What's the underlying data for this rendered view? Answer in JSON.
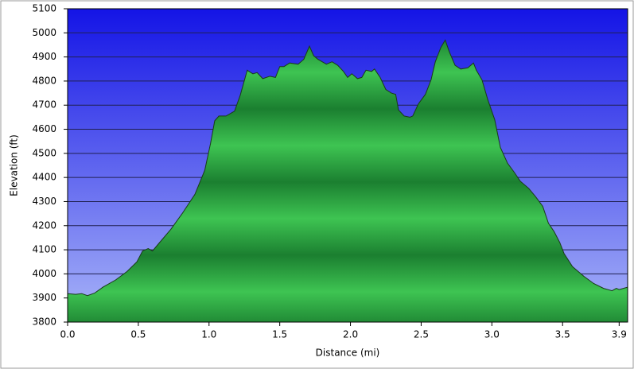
{
  "chart_data": {
    "type": "area",
    "xlabel": "Distance (mi)",
    "ylabel": "Elevation (ft)",
    "x": [
      0,
      0.056,
      0.1,
      0.14,
      0.19,
      0.25,
      0.34,
      0.42,
      0.49,
      0.53,
      0.57,
      0.6,
      0.65,
      0.73,
      0.81,
      0.9,
      0.97,
      1.01,
      1.04,
      1.07,
      1.12,
      1.18,
      1.22,
      1.27,
      1.31,
      1.34,
      1.38,
      1.43,
      1.47,
      1.5,
      1.53,
      1.57,
      1.63,
      1.67,
      1.71,
      1.74,
      1.77,
      1.83,
      1.87,
      1.91,
      1.95,
      1.98,
      2.01,
      2.05,
      2.08,
      2.11,
      2.15,
      2.17,
      2.21,
      2.25,
      2.29,
      2.32,
      2.34,
      2.38,
      2.42,
      2.44,
      2.48,
      2.53,
      2.57,
      2.6,
      2.64,
      2.67,
      2.7,
      2.74,
      2.78,
      2.83,
      2.87,
      2.89,
      2.93,
      2.97,
      3.02,
      3.06,
      3.11,
      3.16,
      3.2,
      3.26,
      3.31,
      3.36,
      3.4,
      3.44,
      3.48,
      3.51,
      3.57,
      3.65,
      3.72,
      3.79,
      3.85,
      3.88,
      3.9,
      3.96
    ],
    "values": [
      3918,
      3915,
      3918,
      3910,
      3920,
      3945,
      3975,
      4010,
      4050,
      4095,
      4105,
      4095,
      4130,
      4185,
      4250,
      4330,
      4430,
      4540,
      4635,
      4655,
      4655,
      4675,
      4740,
      4845,
      4830,
      4835,
      4810,
      4820,
      4815,
      4860,
      4860,
      4875,
      4870,
      4890,
      4945,
      4905,
      4890,
      4870,
      4880,
      4865,
      4840,
      4815,
      4830,
      4810,
      4815,
      4845,
      4840,
      4850,
      4815,
      4765,
      4750,
      4745,
      4680,
      4655,
      4650,
      4655,
      4705,
      4745,
      4805,
      4880,
      4940,
      4970,
      4920,
      4865,
      4850,
      4855,
      4875,
      4845,
      4805,
      4725,
      4640,
      4525,
      4460,
      4420,
      4385,
      4355,
      4320,
      4280,
      4210,
      4175,
      4130,
      4085,
      4030,
      3990,
      3960,
      3940,
      3930,
      3940,
      3935,
      3945
    ],
    "color": "#1f9a3a",
    "xlim": [
      0,
      3.96
    ],
    "ylim": [
      3800,
      5100
    ],
    "xticks": [
      {
        "value": 0,
        "label": "0.0"
      },
      0.5,
      {
        "value": 1,
        "label": "1.0"
      },
      1.5,
      {
        "value": 2,
        "label": "2.0"
      },
      2.5,
      {
        "value": 3,
        "label": "3.0"
      },
      3.5,
      3.9
    ],
    "yticks": [
      3800,
      3900,
      4000,
      4100,
      4200,
      4300,
      4400,
      4500,
      4600,
      4700,
      4800,
      4900,
      5000,
      5100
    ],
    "grid": true
  }
}
